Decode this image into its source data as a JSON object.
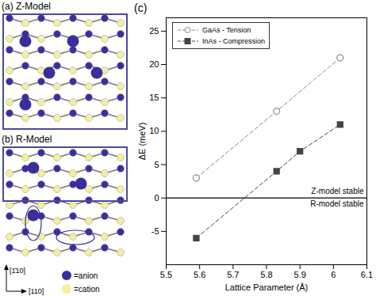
{
  "panels": {
    "a": {
      "title": "(a) Z-Model"
    },
    "b": {
      "title": "(b) R-Model"
    },
    "axes": {
      "vertical": "[1̄10]",
      "horizontal": "[110]"
    },
    "legend": [
      {
        "label": "=anion",
        "color": "#3a2e9c"
      },
      {
        "label": "=cation",
        "color": "#f4ef9c"
      }
    ]
  },
  "chart_data": {
    "type": "line",
    "title": "(c)",
    "x_label": "Lattice Parameter (Å)",
    "y_label": "ΔE (meV)",
    "xlim": [
      5.5,
      6.1
    ],
    "xticks": [
      5.5,
      5.6,
      5.7,
      5.8,
      5.9,
      6,
      6.1
    ],
    "ylim": [
      -10,
      27
    ],
    "yticks": [
      -5,
      0,
      5,
      10,
      15,
      20,
      25
    ],
    "grid": false,
    "legend": "upper left",
    "hline": 0,
    "series": [
      {
        "name": "GaAs - Tension",
        "color": "#888888",
        "marker": "open circle",
        "line_style": "dashed",
        "x": [
          5.59,
          5.83,
          6.02
        ],
        "values": [
          3,
          13,
          21
        ]
      },
      {
        "name": "InAs - Compression",
        "color": "#444444",
        "marker": "square",
        "line_style": "dashed",
        "x": [
          5.59,
          5.83,
          5.9,
          6.02
        ],
        "values": [
          -6,
          4,
          7,
          11
        ]
      }
    ],
    "annotations": [
      {
        "text": "Z-model stable",
        "x": 6.1,
        "y": 0,
        "position": "above"
      },
      {
        "text": "R-model stable",
        "x": 6.1,
        "y": 0,
        "position": "below"
      }
    ]
  }
}
